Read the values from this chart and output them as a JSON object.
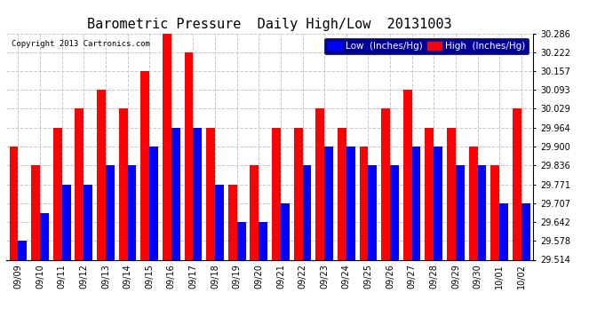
{
  "title": "Barometric Pressure  Daily High/Low  20131003",
  "copyright": "Copyright 2013 Cartronics.com",
  "legend_low": "Low  (Inches/Hg)",
  "legend_high": "High  (Inches/Hg)",
  "categories": [
    "09/09",
    "09/10",
    "09/11",
    "09/12",
    "09/13",
    "09/14",
    "09/15",
    "09/16",
    "09/17",
    "09/18",
    "09/19",
    "09/20",
    "09/21",
    "09/22",
    "09/23",
    "09/24",
    "09/25",
    "09/26",
    "09/27",
    "09/28",
    "09/29",
    "09/30",
    "10/01",
    "10/02"
  ],
  "low_values": [
    29.578,
    29.672,
    29.771,
    29.771,
    29.836,
    29.836,
    29.9,
    29.964,
    29.964,
    29.771,
    29.642,
    29.642,
    29.707,
    29.836,
    29.9,
    29.9,
    29.836,
    29.836,
    29.9,
    29.9,
    29.836,
    29.836,
    29.707,
    29.707
  ],
  "high_values": [
    29.9,
    29.836,
    29.964,
    30.029,
    30.093,
    30.029,
    30.157,
    30.286,
    30.222,
    29.964,
    29.771,
    29.836,
    29.964,
    29.964,
    30.029,
    29.964,
    29.9,
    30.029,
    30.093,
    29.964,
    29.964,
    29.9,
    29.836,
    30.029
  ],
  "low_color": "#0000ff",
  "high_color": "#ff0000",
  "background_color": "#ffffff",
  "plot_background": "#ffffff",
  "grid_color": "#c8c8c8",
  "ylim_min": 29.514,
  "ylim_max": 30.286,
  "yticks": [
    29.514,
    29.578,
    29.642,
    29.707,
    29.771,
    29.836,
    29.9,
    29.964,
    30.029,
    30.093,
    30.157,
    30.222,
    30.286
  ],
  "title_fontsize": 11,
  "tick_fontsize": 7,
  "legend_fontsize": 7.5
}
